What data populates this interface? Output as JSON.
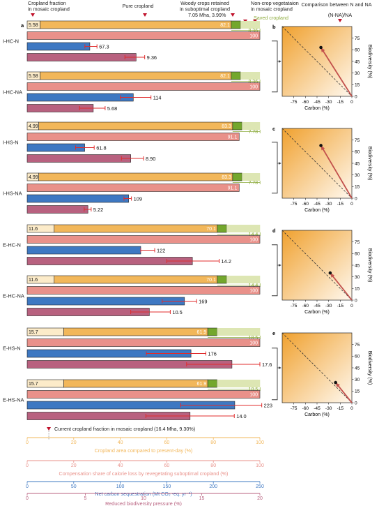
{
  "colors": {
    "cropland": "#F2B75A",
    "cropland_light": "#FCEBC9",
    "woody": "#73A72C",
    "saved": "#DDE6B3",
    "saved_text": "#8BAA3A",
    "compensation": "#E9918A",
    "carbon": "#3E78C2",
    "biodiversity": "#B8617F",
    "error": "#E02C2C",
    "marker": "#C0122B"
  },
  "header": {
    "cropland_fraction": "Cropland fraction\nin mosaic cropland",
    "pure_cropland": "Pure cropland",
    "woody_crops": "Woody crops retained\nin suboptimal cropland",
    "woody_value": "7.05 Mha, 3.99%",
    "noncrop": "Non-crop vegetataion\nin mosaic cropland",
    "saved_cropland": "Saved cropland",
    "comparison": "Comparison between N and NA",
    "ratio": "(N-NA)/NA"
  },
  "panel_letters": [
    "a",
    "b",
    "c",
    "d",
    "e"
  ],
  "footer": {
    "current_label": "Current cropland fraction in mosaic cropland (16.4 Mha, 9.30%)",
    "axes": [
      {
        "label": "Cropland area compared to present-day (%)",
        "ticks": [
          "0",
          "20",
          "40",
          "60",
          "80",
          "100"
        ],
        "color": "#F2B75A"
      },
      {
        "label": "Compensation share of calorie loss by revegetating suboptimal cropland (%)",
        "ticks": [
          "0",
          "20",
          "40",
          "60",
          "80",
          "100"
        ],
        "color": "#E9918A"
      },
      {
        "label": "Net carbon sequestration (Mt CO₂ -eq. yr⁻¹)",
        "ticks": [
          "0",
          "50",
          "100",
          "150",
          "200",
          "250"
        ],
        "color": "#3E78C2"
      },
      {
        "label": "Reduced biodiversity pressure (%)",
        "ticks": [
          "0",
          "5",
          "10",
          "15",
          "20"
        ],
        "color": "#B8617F"
      }
    ]
  },
  "chart_data": [
    {
      "type": "bar",
      "categories": [
        "I-HC-N",
        "I-HC-NA",
        "I-HS-N",
        "I-HS-NA",
        "E-HC-N",
        "E-HC-NA",
        "E-HS-N",
        "E-HS-NA"
      ],
      "series": [
        {
          "name": "Cropland fraction in mosaic cropland",
          "values": [
            5.58,
            5.58,
            4.99,
            4.99,
            11.6,
            11.6,
            15.7,
            15.7
          ],
          "labels": [
            "5.58",
            "5.58",
            "4.99",
            "4.99",
            "11.6",
            "11.6",
            "15.7",
            "15.7"
          ]
        },
        {
          "name": "Pure cropland",
          "values": [
            82.1,
            82.1,
            83.3,
            83.3,
            70.1,
            70.1,
            61.9,
            61.9
          ],
          "labels": [
            "82.1",
            "82.1",
            "83.3",
            "83.3",
            "70.1",
            "70.1",
            "61.9",
            "61.9"
          ]
        },
        {
          "name": "Woody crops retained in suboptimal cropland",
          "values": [
            3.99,
            3.99,
            3.99,
            3.99,
            3.99,
            3.99,
            3.99,
            3.99
          ]
        },
        {
          "name": "Saved cropland",
          "values": [
            8.36,
            8.36,
            7.78,
            7.78,
            14.4,
            14.4,
            18.5,
            18.5
          ],
          "labels": [
            "8.36",
            "8.36",
            "7.78",
            "7.78",
            "14.4",
            "14.4",
            "18.5",
            "18.5"
          ]
        },
        {
          "name": "Compensation share of calorie loss",
          "values": [
            100,
            100,
            91.1,
            91.1,
            100,
            100,
            100,
            100
          ],
          "labels": [
            "100",
            "100",
            "91.1",
            "91.1",
            "100",
            "100",
            "100",
            "100"
          ]
        },
        {
          "name": "Net carbon sequestration",
          "values": [
            67.3,
            114,
            61.8,
            109,
            122,
            169,
            176,
            223
          ],
          "labels": [
            "67.3",
            "114",
            "61.8",
            "109",
            "122",
            "169",
            "176",
            "223"
          ],
          "err_low": [
            62,
            100,
            52,
            104,
            122,
            145,
            128,
            165
          ],
          "err_high": [
            75,
            133,
            72,
            112,
            137,
            182,
            192,
            252
          ]
        },
        {
          "name": "Reduced biodiversity pressure",
          "values": [
            9.36,
            5.68,
            8.9,
            5.22,
            14.2,
            10.5,
            17.6,
            14.0
          ],
          "labels": [
            "9.36",
            "5.68",
            "8.90",
            "5.22",
            "14.2",
            "10.5",
            "17.6",
            "14.0"
          ],
          "err_low": [
            8.4,
            4.5,
            8.1,
            4.9,
            12.0,
            8.9,
            13.7,
            10.2
          ],
          "err_high": [
            10.1,
            6.7,
            10.0,
            5.5,
            16.5,
            12.3,
            20.0,
            17.8
          ]
        }
      ],
      "current_cropland_fraction": 9.3
    },
    {
      "type": "scatter",
      "panels": [
        {
          "letter": "b",
          "point": [
            -40,
            63
          ]
        },
        {
          "letter": "c",
          "point": [
            -40,
            68
          ]
        },
        {
          "letter": "d",
          "point": [
            -28,
            35
          ]
        },
        {
          "letter": "e",
          "point": [
            -21,
            26
          ]
        }
      ],
      "xlabel": "Carbon (%)",
      "ylabel": "Biodiversity (%)",
      "xticks": [
        "-75",
        "-60",
        "-45",
        "-30",
        "-15",
        "0"
      ],
      "yticks": [
        "0",
        "15",
        "30",
        "45",
        "60",
        "75"
      ],
      "xlim": [
        -90,
        0
      ],
      "ylim": [
        0,
        90
      ]
    }
  ]
}
